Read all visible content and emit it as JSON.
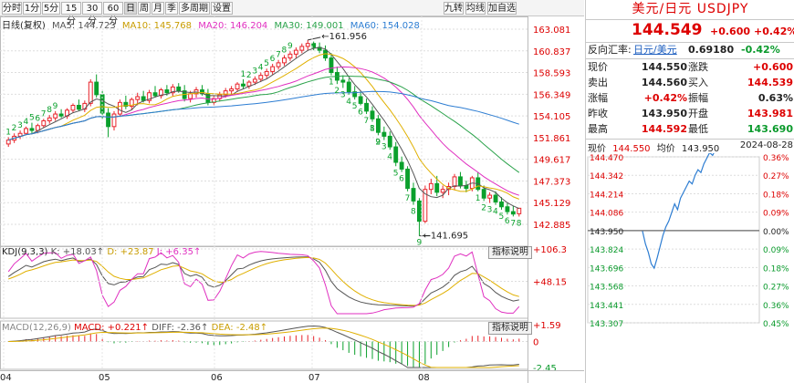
{
  "toolbar": {
    "periods": [
      "分时",
      "1分",
      "5分",
      "15分",
      "30分",
      "60分",
      "日",
      "周",
      "月",
      "季",
      "多周期",
      "设置"
    ],
    "active": "日",
    "right_buttons": [
      "九转",
      "均线",
      "加自选"
    ]
  },
  "legend": {
    "period_label": "日线(复权)",
    "ma5": "MA5: 144.723",
    "ma10": "MA10: 145.768",
    "ma20": "MA20: 146.204",
    "ma30": "MA30: 149.001",
    "ma60": "MA60: 154.028"
  },
  "colors": {
    "up": "#e8232a",
    "down": "#0aa02c",
    "ma5": "#555555",
    "ma10": "#e0b000",
    "ma20": "#e030c0",
    "ma30": "#2aa24a",
    "ma60": "#2d7dd2",
    "seq": "#0aa02c"
  },
  "price_axis": [
    "163.081",
    "160.837",
    "158.593",
    "156.349",
    "154.105",
    "151.861",
    "149.617",
    "147.373",
    "145.129",
    "142.885"
  ],
  "date_axis": [
    "04",
    "05",
    "06",
    "07",
    "08"
  ],
  "kdj": {
    "label": "KDJ(9,3,3)",
    "k": "K: +18.03↑",
    "d": "D: +23.87",
    "j": "J: +6.35↑",
    "axis": [
      "+106.3",
      "+48.15"
    ],
    "explain": "指标说明"
  },
  "macd": {
    "label": "MACD(12,26,9)",
    "macd": "MACD: +0.221↑",
    "diff": "DIFF: -2.36↑",
    "dea": "DEA: -2.48↑",
    "axis": [
      "+1.59",
      "0",
      "-2.45"
    ],
    "explain": "指标说明"
  },
  "annotations": {
    "high": "161.956",
    "low": "141.695"
  },
  "quote": {
    "title": "美元/日元 USDJPY",
    "price": "144.549",
    "change": "+0.600",
    "change_pct": "+0.42%",
    "ref_label": "反向汇率:",
    "ref_name": "日元/美元",
    "ref_value": "0.69180",
    "ref_pct": "-0.42%",
    "rows": [
      {
        "l1": "现价",
        "v1": "144.550",
        "l2": "涨跌",
        "v2": "+0.600"
      },
      {
        "l1": "卖出",
        "v1": "144.560",
        "l2": "买入",
        "v2": "144.539"
      },
      {
        "l1": "涨幅",
        "v1": "+0.42%",
        "l2": "振幅",
        "v2": "0.63%"
      },
      {
        "l1": "昨收",
        "v1": "143.950",
        "l2": "开盘",
        "v2": "143.981"
      },
      {
        "l1": "最高",
        "v1": "144.592",
        "l2": "最低",
        "v2": "143.690"
      }
    ]
  },
  "intraday": {
    "label_price": "现价",
    "price": "144.550",
    "label_avg": "均价",
    "avg": "143.950",
    "date": "2024-08-28",
    "price_ticks": [
      "144.470",
      "144.342",
      "144.214",
      "144.086",
      "143.950",
      "143.824",
      "143.696",
      "143.568",
      "143.441",
      "143.307"
    ],
    "pct_ticks": [
      "0.36%",
      "0.27%",
      "0.18%",
      "0.09%",
      "0.00%",
      "0.09%",
      "0.18%",
      "0.27%",
      "0.36%",
      "0.45%"
    ]
  },
  "chart_data": {
    "type": "candlestick",
    "x_labels": [
      "04",
      "05",
      "06",
      "07",
      "08"
    ],
    "ylim": [
      142.885,
      163.081
    ],
    "indicators": [
      "MA5",
      "MA10",
      "MA20",
      "MA30",
      "MA60",
      "KDJ",
      "MACD"
    ],
    "candles": [
      [
        151.2,
        151.9,
        150.9,
        151.6
      ],
      [
        151.6,
        152.3,
        151.3,
        152.0
      ],
      [
        152.0,
        152.6,
        151.7,
        152.3
      ],
      [
        152.3,
        153.0,
        152.1,
        152.8
      ],
      [
        152.8,
        153.4,
        152.3,
        152.6
      ],
      [
        152.6,
        153.3,
        152.3,
        153.1
      ],
      [
        153.1,
        153.8,
        152.9,
        153.6
      ],
      [
        153.6,
        154.2,
        153.3,
        153.9
      ],
      [
        153.9,
        154.6,
        153.6,
        154.3
      ],
      [
        154.3,
        154.8,
        153.9,
        154.1
      ],
      [
        154.1,
        154.9,
        153.8,
        154.7
      ],
      [
        154.7,
        155.4,
        154.4,
        155.2
      ],
      [
        155.2,
        155.8,
        154.6,
        154.8
      ],
      [
        154.8,
        155.7,
        154.5,
        155.4
      ],
      [
        155.4,
        157.9,
        155.1,
        157.6
      ],
      [
        157.6,
        158.4,
        156.0,
        156.3
      ],
      [
        156.3,
        156.8,
        153.8,
        154.4
      ],
      [
        154.4,
        154.9,
        151.9,
        153.0
      ],
      [
        153.0,
        154.6,
        152.6,
        154.3
      ],
      [
        154.3,
        155.8,
        154.0,
        155.5
      ],
      [
        155.5,
        156.2,
        154.8,
        155.1
      ],
      [
        155.1,
        156.0,
        154.7,
        155.8
      ],
      [
        155.8,
        156.5,
        155.2,
        156.1
      ],
      [
        156.1,
        156.7,
        155.5,
        155.7
      ],
      [
        155.7,
        156.8,
        155.4,
        156.5
      ],
      [
        156.5,
        157.2,
        156.0,
        156.2
      ],
      [
        156.2,
        157.0,
        155.9,
        156.8
      ],
      [
        156.8,
        157.3,
        156.2,
        156.5
      ],
      [
        156.5,
        157.4,
        156.1,
        157.1
      ],
      [
        157.1,
        157.5,
        156.5,
        156.7
      ],
      [
        156.7,
        157.3,
        155.6,
        155.9
      ],
      [
        155.9,
        156.7,
        155.5,
        156.4
      ],
      [
        156.4,
        157.1,
        156.0,
        156.8
      ],
      [
        156.8,
        157.3,
        156.2,
        156.4
      ],
      [
        156.4,
        156.9,
        155.2,
        155.5
      ],
      [
        155.5,
        156.2,
        155.2,
        155.9
      ],
      [
        155.9,
        156.6,
        155.6,
        156.3
      ],
      [
        156.3,
        157.0,
        156.0,
        156.7
      ],
      [
        156.7,
        157.2,
        156.3,
        156.9
      ],
      [
        156.9,
        157.6,
        156.6,
        157.4
      ],
      [
        157.4,
        157.9,
        156.9,
        157.2
      ],
      [
        157.2,
        157.8,
        156.9,
        157.6
      ],
      [
        157.6,
        158.2,
        157.3,
        157.9
      ],
      [
        157.9,
        158.6,
        157.6,
        158.3
      ],
      [
        158.3,
        159.0,
        158.0,
        158.7
      ],
      [
        158.7,
        159.5,
        158.4,
        159.2
      ],
      [
        159.2,
        159.9,
        158.9,
        159.6
      ],
      [
        159.6,
        160.4,
        159.3,
        160.1
      ],
      [
        160.1,
        160.8,
        159.8,
        160.5
      ],
      [
        160.5,
        161.2,
        160.1,
        160.9
      ],
      [
        160.9,
        161.6,
        160.6,
        161.3
      ],
      [
        161.3,
        161.956,
        160.9,
        161.6
      ],
      [
        161.6,
        161.8,
        160.9,
        161.2
      ],
      [
        161.2,
        161.7,
        160.6,
        160.9
      ],
      [
        160.9,
        161.4,
        159.8,
        160.1
      ],
      [
        160.1,
        160.6,
        158.3,
        158.6
      ],
      [
        158.6,
        159.2,
        157.4,
        157.8
      ],
      [
        157.8,
        158.3,
        157.0,
        157.6
      ],
      [
        157.6,
        158.0,
        156.3,
        156.6
      ],
      [
        156.6,
        157.2,
        155.8,
        156.1
      ],
      [
        156.1,
        156.6,
        155.2,
        155.4
      ],
      [
        155.4,
        155.9,
        154.3,
        154.6
      ],
      [
        154.6,
        155.1,
        153.5,
        153.8
      ],
      [
        153.8,
        154.2,
        152.1,
        152.4
      ],
      [
        152.4,
        153.0,
        151.6,
        152.0
      ],
      [
        152.0,
        152.5,
        150.6,
        150.9
      ],
      [
        150.9,
        151.4,
        148.9,
        149.3
      ],
      [
        149.3,
        149.9,
        148.3,
        148.6
      ],
      [
        148.6,
        148.9,
        146.3,
        146.6
      ],
      [
        146.6,
        147.2,
        144.9,
        145.3
      ],
      [
        145.3,
        145.6,
        141.695,
        143.2
      ],
      [
        143.2,
        146.9,
        143.0,
        146.5
      ],
      [
        146.5,
        147.6,
        146.0,
        147.1
      ],
      [
        147.1,
        147.9,
        145.8,
        146.2
      ],
      [
        146.2,
        146.9,
        145.6,
        146.5
      ],
      [
        146.5,
        147.2,
        145.9,
        146.8
      ],
      [
        146.8,
        148.1,
        146.4,
        147.8
      ],
      [
        147.8,
        148.3,
        146.6,
        146.9
      ],
      [
        146.9,
        147.4,
        146.2,
        146.6
      ],
      [
        146.6,
        147.9,
        146.3,
        147.7
      ],
      [
        147.7,
        148.3,
        146.3,
        146.5
      ],
      [
        146.5,
        146.9,
        145.3,
        145.6
      ],
      [
        145.6,
        146.2,
        145.1,
        145.9
      ],
      [
        145.9,
        146.3,
        144.9,
        145.2
      ],
      [
        145.2,
        145.7,
        144.4,
        144.7
      ],
      [
        144.7,
        145.1,
        143.9,
        144.2
      ],
      [
        144.2,
        144.8,
        143.7,
        143.95
      ],
      [
        143.98,
        144.59,
        143.69,
        144.55
      ]
    ]
  }
}
